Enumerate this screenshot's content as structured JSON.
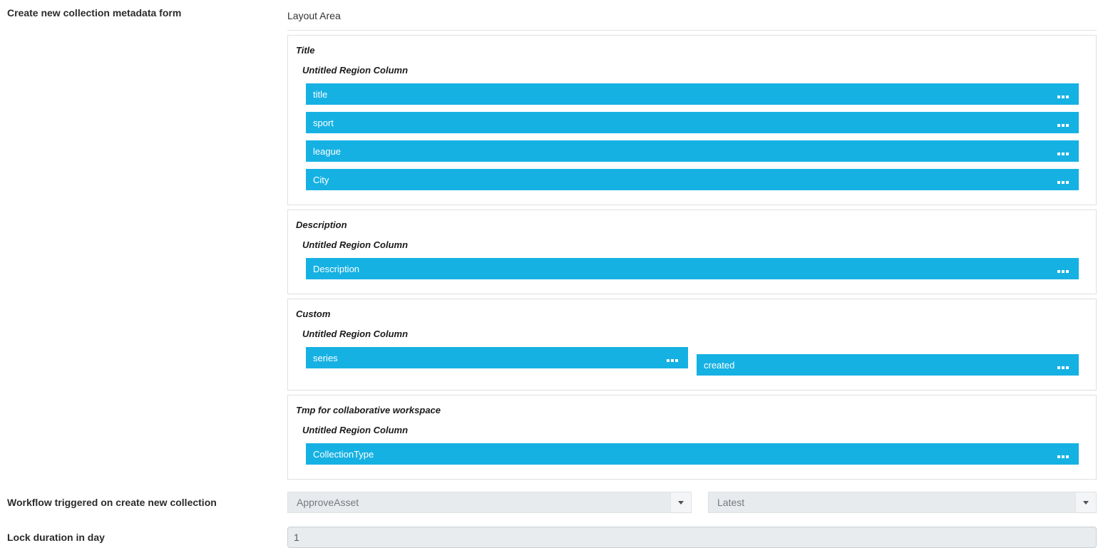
{
  "header": {
    "form_label": "Create new collection metadata form",
    "layout_area_label": "Layout Area"
  },
  "sections": [
    {
      "title": "Title",
      "region_label": "Untitled Region Column",
      "fields": [
        "title",
        "sport",
        "league",
        "City"
      ]
    },
    {
      "title": "Description",
      "region_label": "Untitled Region Column",
      "fields": [
        "Description"
      ]
    },
    {
      "title": "Custom",
      "region_label": "Untitled Region Column",
      "fields": [
        "series",
        "created"
      ]
    },
    {
      "title": "Tmp for collaborative workspace",
      "region_label": "Untitled Region Column",
      "fields": [
        "CollectionType"
      ]
    }
  ],
  "workflow": {
    "label": "Workflow triggered on create new collection",
    "workflow_dropdown_value": "ApproveAsset",
    "version_dropdown_value": "Latest"
  },
  "lock_duration": {
    "label": "Lock duration in day",
    "value": "1"
  },
  "colors": {
    "field_bar_blue": "#16b1e3",
    "control_background": "#e9ecef",
    "section_border": "#e0e0e0"
  }
}
